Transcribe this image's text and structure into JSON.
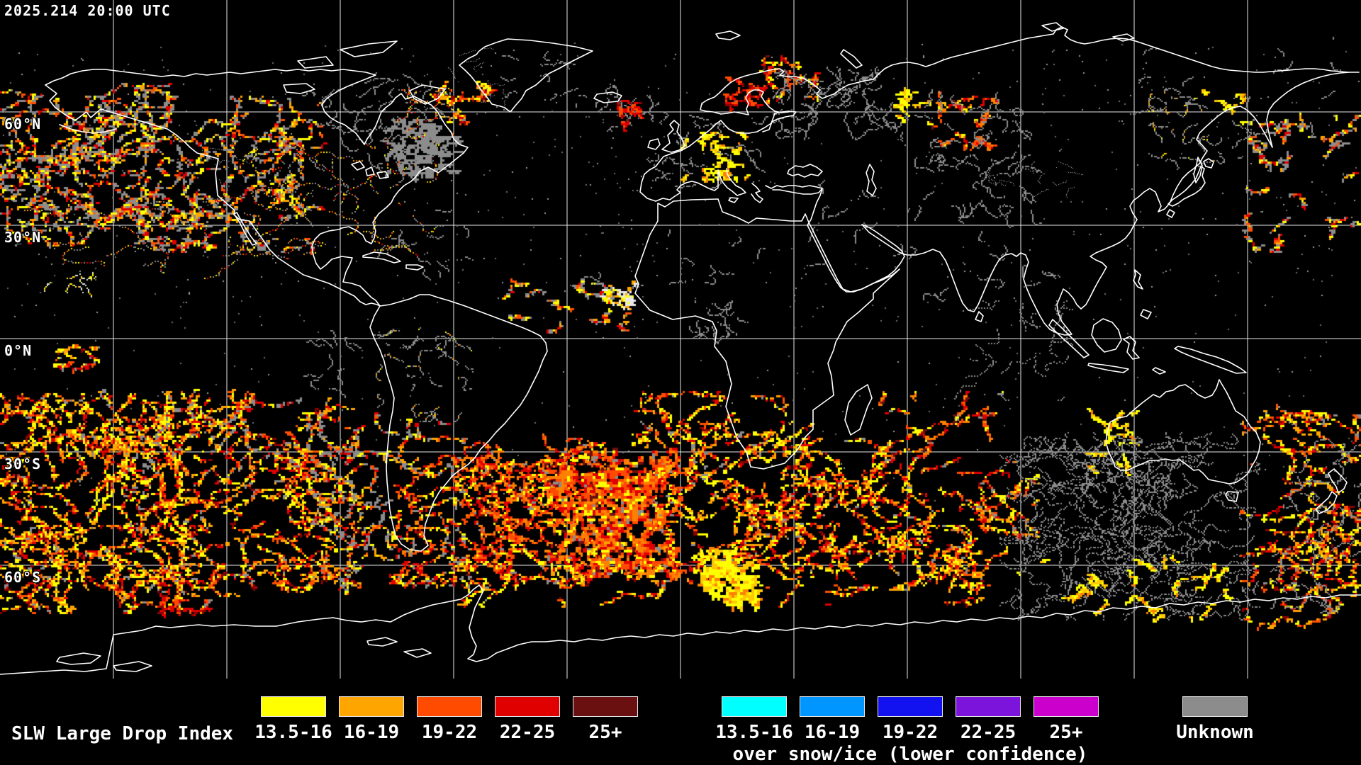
{
  "window": {
    "timestamp": "2025.214 20:00 UTC"
  },
  "map": {
    "lat_labels": [
      {
        "label": "60°N",
        "lat": 60
      },
      {
        "label": "30°N",
        "lat": 30
      },
      {
        "label": "0°N",
        "lat": 0
      },
      {
        "label": "30°S",
        "lat": -30
      },
      {
        "label": "60°S",
        "lat": -60
      }
    ],
    "grid": {
      "lon_lines": [
        -150,
        -120,
        -90,
        -60,
        -30,
        0,
        30,
        60,
        90,
        120,
        150
      ],
      "lat_lines": [
        60,
        30,
        0,
        -30,
        -60
      ],
      "lon_step_deg": 30,
      "lat_step_deg": 30
    }
  },
  "legend": {
    "title": "SLW Large Drop Index",
    "groups": [
      {
        "caption": "",
        "items": [
          {
            "range": "13.5-16",
            "color": "#FFFF00"
          },
          {
            "range": "16-19",
            "color": "#FFA500"
          },
          {
            "range": "19-22",
            "color": "#FF4B00"
          },
          {
            "range": "22-25",
            "color": "#E00000"
          },
          {
            "range": "25+",
            "color": "#6B1010"
          }
        ]
      },
      {
        "caption": "over snow/ice (lower confidence)",
        "items": [
          {
            "range": "13.5-16",
            "color": "#00FFFF"
          },
          {
            "range": "16-19",
            "color": "#0096FF"
          },
          {
            "range": "19-22",
            "color": "#1212F0"
          },
          {
            "range": "22-25",
            "color": "#7D14DC"
          },
          {
            "range": "25+",
            "color": "#CC00CC"
          }
        ]
      }
    ],
    "unknown": {
      "label": "Unknown",
      "color": "#8C8C8C"
    }
  },
  "chart_data": {
    "type": "heatmap",
    "title": "SLW Large Drop Index",
    "timestamp": "2025.214 20:00 UTC",
    "projection": "equirectangular",
    "extent": {
      "lon": [
        -180,
        180
      ],
      "lat": [
        -90,
        90
      ]
    },
    "grid": {
      "lon_step_deg": 30,
      "lat_step_deg": 30
    },
    "bins": [
      "13.5-16",
      "16-19",
      "19-22",
      "22-25",
      "25+",
      "Unknown"
    ],
    "bin_colors": [
      "#FFFF00",
      "#FFA500",
      "#FF4B00",
      "#E00000",
      "#6B1010",
      "#8C8C8C"
    ],
    "snow_ice_bin_colors": [
      "#00FFFF",
      "#0096FF",
      "#1212F0",
      "#7D14DC",
      "#CC00CC"
    ],
    "palettes": {
      "warm": [
        [
          "#FFFF00",
          0.27
        ],
        [
          "#FFA500",
          0.25
        ],
        [
          "#FF5000",
          0.18
        ],
        [
          "#E00000",
          0.17
        ],
        [
          "#8B0000",
          0.07
        ],
        [
          "#8C8C8C",
          0.06
        ]
      ],
      "hot": [
        [
          "#FF8000",
          0.28
        ],
        [
          "#FF4A00",
          0.27
        ],
        [
          "#E00000",
          0.22
        ],
        [
          "#FFFF00",
          0.13
        ],
        [
          "#6B1010",
          0.06
        ],
        [
          "#8C8C8C",
          0.04
        ]
      ],
      "yellowhot": [
        [
          "#FFFF00",
          0.58
        ],
        [
          "#FFC800",
          0.27
        ],
        [
          "#FF8000",
          0.15
        ]
      ],
      "gray": [
        [
          "#8C8C8C",
          1.0
        ]
      ],
      "grayfleck": [
        [
          "#8C8C8C",
          0.88
        ],
        [
          "#FFFF00",
          0.06
        ],
        [
          "#FFA500",
          0.06
        ]
      ],
      "warmgray": [
        [
          "#8C8C8C",
          0.42
        ],
        [
          "#FFFF00",
          0.16
        ],
        [
          "#FFA500",
          0.16
        ],
        [
          "#FF5000",
          0.13
        ],
        [
          "#E00000",
          0.13
        ]
      ],
      "redstreak": [
        [
          "#E00000",
          0.5
        ],
        [
          "#FF4A00",
          0.28
        ],
        [
          "#8B0000",
          0.22
        ]
      ],
      "whitefleck": [
        [
          "#E8E8E8",
          0.55
        ],
        [
          "#FFFF00",
          0.23
        ],
        [
          "#FFA500",
          0.22
        ]
      ],
      "whitedust": [
        [
          "#C0C0C0",
          1.0
        ]
      ],
      "dust": [
        [
          "#6E6E6E",
          0.7
        ],
        [
          "#9A9A9A",
          0.3
        ]
      ]
    },
    "map_regions": [
      [
        0,
        120,
        240,
        220,
        70,
        24,
        3,
        0.7,
        3,
        "warmgray"
      ],
      [
        190,
        140,
        260,
        210,
        50,
        22,
        3,
        0.7,
        3,
        "warmgray"
      ],
      [
        340,
        200,
        280,
        170,
        30,
        20,
        3,
        0.7,
        2,
        "warmgray"
      ],
      [
        40,
        280,
        300,
        110,
        16,
        16,
        3,
        0.7,
        2,
        "warmgray"
      ],
      [
        430,
        105,
        210,
        130,
        26,
        16,
        2,
        0.8,
        2,
        "gray"
      ],
      [
        548,
        172,
        95,
        75,
        24,
        22,
        2,
        1.0,
        3,
        "gray"
      ],
      [
        460,
        295,
        200,
        95,
        12,
        10,
        2,
        0.8,
        2,
        "gray"
      ],
      [
        607,
        112,
        85,
        55,
        12,
        12,
        2,
        0.8,
        3,
        "warm"
      ],
      [
        556,
        120,
        90,
        70,
        12,
        14,
        2,
        0.8,
        2,
        "warmgray"
      ],
      [
        700,
        75,
        120,
        70,
        10,
        10,
        2,
        0.8,
        2,
        "gray"
      ],
      [
        820,
        120,
        95,
        60,
        12,
        12,
        2,
        0.8,
        2,
        "gray"
      ],
      [
        876,
        142,
        34,
        38,
        7,
        10,
        2,
        0.8,
        3,
        "redstreak"
      ],
      [
        1014,
        112,
        62,
        42,
        9,
        11,
        2,
        0.6,
        3,
        "redstreak"
      ],
      [
        965,
        190,
        90,
        58,
        14,
        14,
        2,
        0.8,
        3,
        "yellowhot"
      ],
      [
        900,
        148,
        180,
        115,
        22,
        12,
        2,
        0.8,
        2,
        "gray"
      ],
      [
        1072,
        84,
        75,
        58,
        12,
        12,
        2,
        0.7,
        3,
        "hot"
      ],
      [
        1095,
        98,
        180,
        95,
        34,
        22,
        2,
        0.9,
        2,
        "gray"
      ],
      [
        1262,
        118,
        65,
        52,
        8,
        10,
        2,
        0.7,
        3,
        "yellowhot"
      ],
      [
        1308,
        132,
        95,
        72,
        12,
        14,
        2,
        0.7,
        3,
        "hot"
      ],
      [
        1295,
        130,
        170,
        115,
        24,
        18,
        2,
        0.9,
        2,
        "gray"
      ],
      [
        1625,
        128,
        145,
        105,
        20,
        16,
        2,
        0.8,
        2,
        "grayfleck"
      ],
      [
        1698,
        130,
        55,
        28,
        5,
        8,
        2,
        0.6,
        3,
        "yellowhot"
      ],
      [
        1758,
        165,
        162,
        185,
        24,
        16,
        2,
        0.7,
        3,
        "warmgray"
      ],
      [
        1338,
        222,
        125,
        95,
        16,
        16,
        2,
        0.8,
        2,
        "gray"
      ],
      [
        452,
        142,
        125,
        62,
        10,
        10,
        2,
        0.7,
        2,
        "gray"
      ],
      [
        1128,
        248,
        185,
        122,
        12,
        12,
        2,
        0.8,
        2,
        "gray"
      ],
      [
        828,
        328,
        245,
        82,
        10,
        10,
        2,
        0.7,
        2,
        "gray"
      ],
      [
        955,
        428,
        95,
        52,
        12,
        14,
        2,
        0.8,
        2,
        "gray"
      ],
      [
        695,
        398,
        195,
        72,
        16,
        12,
        2,
        0.8,
        3,
        "warmgray"
      ],
      [
        855,
        392,
        45,
        38,
        8,
        12,
        2,
        0.8,
        3,
        "whitefleck"
      ],
      [
        515,
        465,
        145,
        125,
        22,
        14,
        2,
        0.8,
        2,
        "grayfleck"
      ],
      [
        418,
        468,
        85,
        92,
        10,
        12,
        2,
        0.7,
        2,
        "gray"
      ],
      [
        1352,
        428,
        155,
        132,
        16,
        14,
        3,
        0.7,
        2,
        "gray"
      ],
      [
        1295,
        328,
        195,
        112,
        12,
        10,
        2,
        0.8,
        2,
        "gray"
      ],
      [
        1600,
        55,
        300,
        140,
        14,
        10,
        2,
        0.8,
        2,
        "gray"
      ],
      [
        55,
        388,
        75,
        32,
        8,
        8,
        2,
        0.7,
        2,
        "whitefleck"
      ],
      [
        82,
        488,
        52,
        32,
        8,
        10,
        2,
        0.7,
        3,
        "warm"
      ],
      [
        290,
        198,
        58,
        112,
        10,
        10,
        2,
        0.8,
        1,
        "whitedust"
      ],
      [
        1378,
        218,
        145,
        62,
        12,
        10,
        2,
        0.8,
        1,
        "whitedust"
      ],
      [
        618,
        68,
        95,
        85,
        10,
        10,
        2,
        0.8,
        1,
        "whitedust"
      ],
      [
        0,
        560,
        290,
        300,
        95,
        30,
        3,
        0.6,
        3,
        "warm"
      ],
      [
        210,
        555,
        300,
        285,
        60,
        26,
        3,
        0.6,
        3,
        "warm"
      ],
      [
        430,
        585,
        225,
        245,
        36,
        22,
        3,
        0.65,
        3,
        "warmgray"
      ],
      [
        558,
        638,
        165,
        185,
        26,
        20,
        3,
        0.7,
        3,
        "hot"
      ],
      [
        642,
        615,
        205,
        205,
        48,
        26,
        3,
        0.6,
        3,
        "hot"
      ],
      [
        775,
        638,
        175,
        175,
        60,
        30,
        2.5,
        0.8,
        4,
        "hot"
      ],
      [
        925,
        598,
        225,
        225,
        52,
        26,
        3,
        0.6,
        3,
        "warm"
      ],
      [
        988,
        778,
        75,
        72,
        26,
        20,
        2,
        0.9,
        4,
        "yellowhot"
      ],
      [
        1128,
        618,
        172,
        192,
        32,
        22,
        3,
        0.65,
        3,
        "warm"
      ],
      [
        1265,
        668,
        195,
        162,
        28,
        22,
        3,
        0.65,
        3,
        "warm"
      ],
      [
        1228,
        556,
        195,
        112,
        14,
        16,
        3,
        0.5,
        3,
        "hot"
      ],
      [
        1415,
        615,
        355,
        255,
        120,
        30,
        2.5,
        0.9,
        2,
        "gray"
      ],
      [
        1475,
        788,
        265,
        82,
        20,
        14,
        2,
        0.8,
        3,
        "yellowhot"
      ],
      [
        1755,
        575,
        165,
        305,
        42,
        24,
        3,
        0.65,
        3,
        "warm"
      ],
      [
        1798,
        598,
        122,
        262,
        30,
        20,
        2,
        0.9,
        2,
        "gray"
      ],
      [
        1538,
        578,
        62,
        92,
        10,
        16,
        2,
        0.5,
        3,
        "yellowhot"
      ],
      [
        1518,
        612,
        132,
        102,
        25,
        20,
        2,
        0.9,
        2,
        "gray"
      ],
      [
        228,
        835,
        62,
        28,
        6,
        10,
        2,
        0.6,
        3,
        "redstreak"
      ],
      [
        130,
        555,
        345,
        105,
        18,
        20,
        3,
        0.5,
        3,
        "warmgray"
      ],
      [
        895,
        555,
        205,
        85,
        14,
        16,
        3,
        0.5,
        3,
        "warm"
      ],
      [
        640,
        760,
        300,
        90,
        20,
        18,
        3,
        0.6,
        3,
        "warm"
      ],
      [
        1080,
        760,
        300,
        90,
        16,
        16,
        3,
        0.6,
        3,
        "warm"
      ],
      [
        0,
        60,
        1920,
        400,
        700,
        1,
        1,
        0,
        2,
        "dust"
      ],
      [
        0,
        460,
        1920,
        250,
        260,
        1,
        1,
        0,
        2,
        "dust"
      ]
    ]
  }
}
